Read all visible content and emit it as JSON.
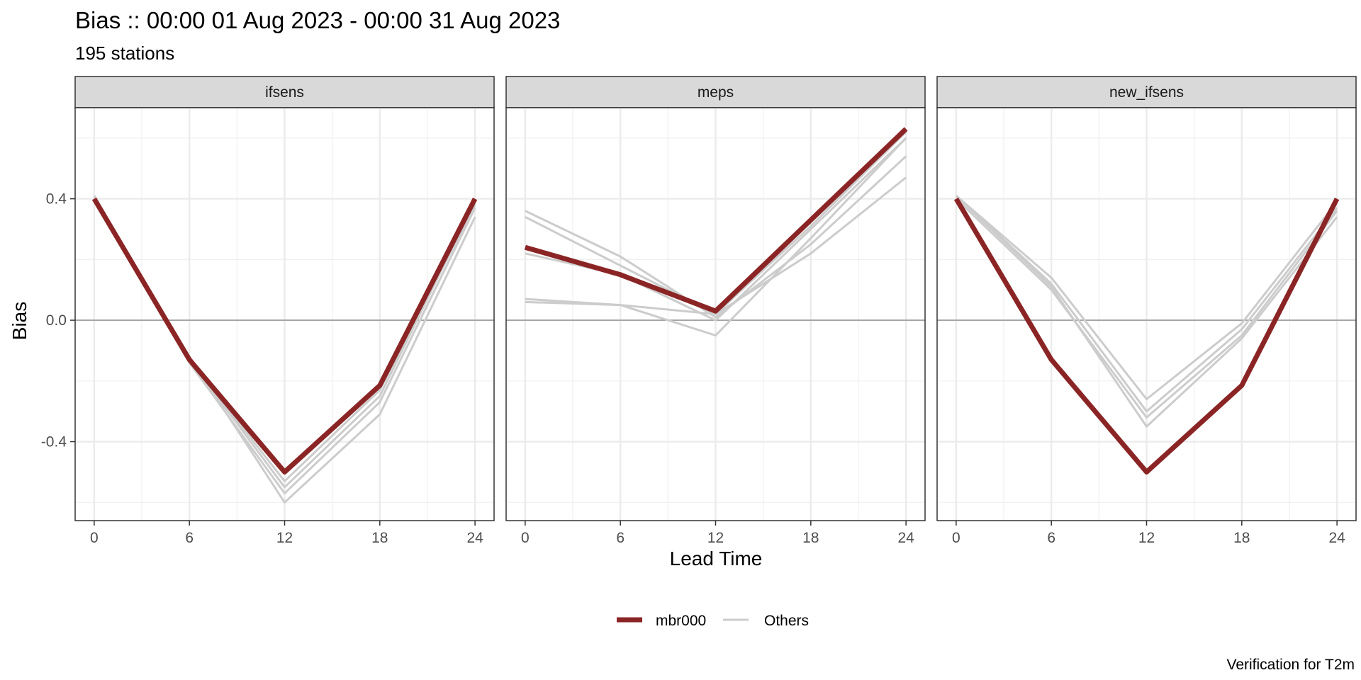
{
  "chart_data": {
    "type": "line",
    "title": "Bias :: 00:00 01 Aug 2023 - 00:00 31 Aug 2023",
    "subtitle": "195 stations",
    "caption": "Verification for T2m",
    "xlabel": "Lead Time",
    "ylabel": "Bias",
    "x_ticks": [
      0,
      6,
      12,
      18,
      24
    ],
    "y_ticks": [
      0.4,
      0.0,
      -0.4
    ],
    "y_tick_labels": [
      "0.4",
      "0.0",
      "-0.4"
    ],
    "xlim": [
      -1.2,
      25.2
    ],
    "ylim": [
      -0.66,
      0.7
    ],
    "grid": true,
    "legend": {
      "position": "bottom",
      "entries": [
        {
          "label": "mbr000",
          "color": "#8b2525"
        },
        {
          "label": "Others",
          "color": "#cccccc"
        }
      ]
    },
    "panels": [
      {
        "name": "ifsens",
        "highlight": {
          "name": "mbr000",
          "x": [
            0,
            6,
            12,
            18,
            24
          ],
          "y": [
            0.4,
            -0.13,
            -0.5,
            -0.215,
            0.4
          ]
        },
        "others": [
          {
            "x": [
              0,
              6,
              12,
              18,
              24
            ],
            "y": [
              0.41,
              -0.13,
              -0.55,
              -0.25,
              0.39
            ]
          },
          {
            "x": [
              0,
              6,
              12,
              18,
              24
            ],
            "y": [
              0.4,
              -0.14,
              -0.57,
              -0.27,
              0.37
            ]
          },
          {
            "x": [
              0,
              6,
              12,
              18,
              24
            ],
            "y": [
              0.4,
              -0.12,
              -0.6,
              -0.31,
              0.34
            ]
          },
          {
            "x": [
              0,
              6,
              12,
              18,
              24
            ],
            "y": [
              0.41,
              -0.13,
              -0.53,
              -0.23,
              0.38
            ]
          }
        ]
      },
      {
        "name": "meps",
        "highlight": {
          "name": "mbr000",
          "x": [
            0,
            6,
            12,
            18,
            24
          ],
          "y": [
            0.24,
            0.15,
            0.03,
            0.33,
            0.63
          ]
        },
        "others": [
          {
            "x": [
              0,
              6,
              12,
              18,
              24
            ],
            "y": [
              0.36,
              0.21,
              0.01,
              0.25,
              0.54
            ]
          },
          {
            "x": [
              0,
              6,
              12,
              18,
              24
            ],
            "y": [
              0.34,
              0.18,
              0.02,
              0.22,
              0.47
            ]
          },
          {
            "x": [
              0,
              6,
              12,
              18,
              24
            ],
            "y": [
              0.22,
              0.15,
              0.0,
              0.3,
              0.6
            ]
          },
          {
            "x": [
              0,
              6,
              12,
              18,
              24
            ],
            "y": [
              0.07,
              0.05,
              -0.05,
              0.27,
              0.6
            ]
          },
          {
            "x": [
              0,
              6,
              12,
              18,
              24
            ],
            "y": [
              0.06,
              0.05,
              0.02,
              0.31,
              0.62
            ]
          }
        ]
      },
      {
        "name": "new_ifsens",
        "highlight": {
          "name": "mbr000",
          "x": [
            0,
            6,
            12,
            18,
            24
          ],
          "y": [
            0.4,
            -0.13,
            -0.5,
            -0.215,
            0.4
          ]
        },
        "others": [
          {
            "x": [
              0,
              6,
              12,
              18,
              24
            ],
            "y": [
              0.41,
              0.14,
              -0.26,
              -0.01,
              0.39
            ]
          },
          {
            "x": [
              0,
              6,
              12,
              18,
              24
            ],
            "y": [
              0.41,
              0.12,
              -0.3,
              -0.03,
              0.37
            ]
          },
          {
            "x": [
              0,
              6,
              12,
              18,
              24
            ],
            "y": [
              0.4,
              0.1,
              -0.32,
              -0.05,
              0.36
            ]
          },
          {
            "x": [
              0,
              6,
              12,
              18,
              24
            ],
            "y": [
              0.41,
              0.11,
              -0.35,
              -0.06,
              0.34
            ]
          }
        ]
      }
    ]
  }
}
